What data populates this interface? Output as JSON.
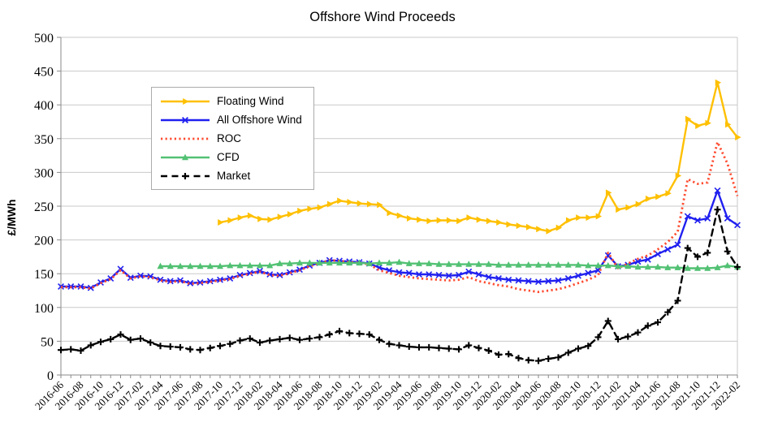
{
  "chart_data": {
    "type": "line",
    "title": "Offshore Wind Proceeds",
    "xlabel": "",
    "ylabel": "£/MWh",
    "ylim": [
      0,
      500
    ],
    "ytick_step": 50,
    "grid": "horizontal",
    "legend_position": "upper-left-inside",
    "x_tick_every": 2,
    "x": [
      "2016-06",
      "2016-07",
      "2016-08",
      "2016-09",
      "2016-10",
      "2016-11",
      "2016-12",
      "2017-01",
      "2017-02",
      "2017-03",
      "2017-04",
      "2017-05",
      "2017-06",
      "2017-07",
      "2017-08",
      "2017-09",
      "2017-10",
      "2017-11",
      "2017-12",
      "2018-01",
      "2018-02",
      "2018-03",
      "2018-04",
      "2018-05",
      "2018-06",
      "2018-07",
      "2018-08",
      "2018-09",
      "2018-10",
      "2018-11",
      "2018-12",
      "2019-01",
      "2019-02",
      "2019-03",
      "2019-04",
      "2019-05",
      "2019-06",
      "2019-07",
      "2019-08",
      "2019-09",
      "2019-10",
      "2019-11",
      "2019-12",
      "2020-01",
      "2020-02",
      "2020-03",
      "2020-04",
      "2020-05",
      "2020-06",
      "2020-07",
      "2020-08",
      "2020-09",
      "2020-10",
      "2020-11",
      "2020-12",
      "2021-01",
      "2021-02",
      "2021-03",
      "2021-04",
      "2021-05",
      "2021-06",
      "2021-07",
      "2021-08",
      "2021-09",
      "2021-10",
      "2021-11",
      "2021-12",
      "2022-01",
      "2022-02"
    ],
    "series": [
      {
        "name": "Floating Wind",
        "color": "#FFC000",
        "style": "solid",
        "marker": "triangle-right",
        "values": [
          null,
          null,
          null,
          null,
          null,
          null,
          null,
          null,
          null,
          null,
          null,
          null,
          null,
          null,
          null,
          null,
          226,
          229,
          233,
          236,
          231,
          230,
          234,
          238,
          243,
          246,
          248,
          253,
          258,
          256,
          254,
          253,
          252,
          240,
          236,
          232,
          230,
          228,
          229,
          229,
          228,
          233,
          230,
          228,
          226,
          223,
          221,
          219,
          216,
          213,
          218,
          229,
          233,
          233,
          235,
          270,
          245,
          248,
          253,
          261,
          264,
          269,
          295,
          379,
          369,
          373,
          433,
          371,
          352
        ]
      },
      {
        "name": "All Offshore Wind",
        "color": "#2020F0",
        "style": "solid",
        "marker": "x",
        "values": [
          131,
          131,
          131,
          129,
          137,
          143,
          157,
          144,
          147,
          146,
          141,
          139,
          140,
          136,
          137,
          139,
          141,
          143,
          148,
          151,
          154,
          149,
          148,
          152,
          156,
          162,
          166,
          170,
          169,
          168,
          167,
          165,
          159,
          155,
          152,
          151,
          149,
          149,
          148,
          147,
          148,
          153,
          149,
          145,
          143,
          141,
          140,
          139,
          138,
          139,
          140,
          143,
          147,
          151,
          155,
          177,
          161,
          163,
          168,
          171,
          179,
          186,
          193,
          235,
          229,
          232,
          273,
          232,
          222
        ]
      },
      {
        "name": "ROC",
        "color": "#FF4B2F",
        "style": "dotted",
        "marker": "none",
        "values": [
          130,
          130,
          130,
          128,
          136,
          142,
          155,
          143,
          146,
          145,
          140,
          138,
          139,
          135,
          136,
          138,
          140,
          142,
          147,
          150,
          153,
          148,
          147,
          151,
          155,
          161,
          165,
          170,
          169,
          167,
          166,
          164,
          155,
          151,
          147,
          145,
          143,
          142,
          141,
          140,
          141,
          145,
          139,
          136,
          133,
          131,
          127,
          125,
          123,
          125,
          127,
          131,
          136,
          141,
          148,
          181,
          158,
          165,
          172,
          177,
          186,
          197,
          212,
          290,
          283,
          285,
          345,
          313,
          265
        ]
      },
      {
        "name": "CFD",
        "color": "#52C173",
        "style": "solid",
        "marker": "triangle-up",
        "values": [
          null,
          null,
          null,
          null,
          null,
          null,
          null,
          null,
          null,
          null,
          161,
          161,
          161,
          161,
          161,
          161,
          161,
          162,
          162,
          162,
          162,
          162,
          165,
          165,
          166,
          166,
          166,
          166,
          166,
          166,
          166,
          165,
          166,
          166,
          167,
          165,
          165,
          165,
          164,
          164,
          164,
          164,
          164,
          164,
          163,
          163,
          163,
          163,
          163,
          163,
          163,
          163,
          163,
          162,
          162,
          162,
          161,
          161,
          160,
          160,
          160,
          159,
          159,
          158,
          158,
          158,
          159,
          162,
          160
        ]
      },
      {
        "name": "Market",
        "color": "#000000",
        "style": "dashed",
        "marker": "plus",
        "values": [
          37,
          38,
          36,
          44,
          49,
          53,
          60,
          52,
          54,
          48,
          43,
          42,
          41,
          38,
          37,
          40,
          43,
          46,
          51,
          54,
          48,
          51,
          53,
          55,
          52,
          54,
          56,
          60,
          65,
          62,
          61,
          60,
          52,
          46,
          44,
          42,
          41,
          41,
          40,
          39,
          38,
          44,
          40,
          36,
          30,
          31,
          25,
          22,
          21,
          24,
          26,
          33,
          39,
          43,
          56,
          80,
          53,
          57,
          63,
          73,
          78,
          93,
          110,
          188,
          175,
          181,
          245,
          183,
          160
        ]
      }
    ]
  }
}
